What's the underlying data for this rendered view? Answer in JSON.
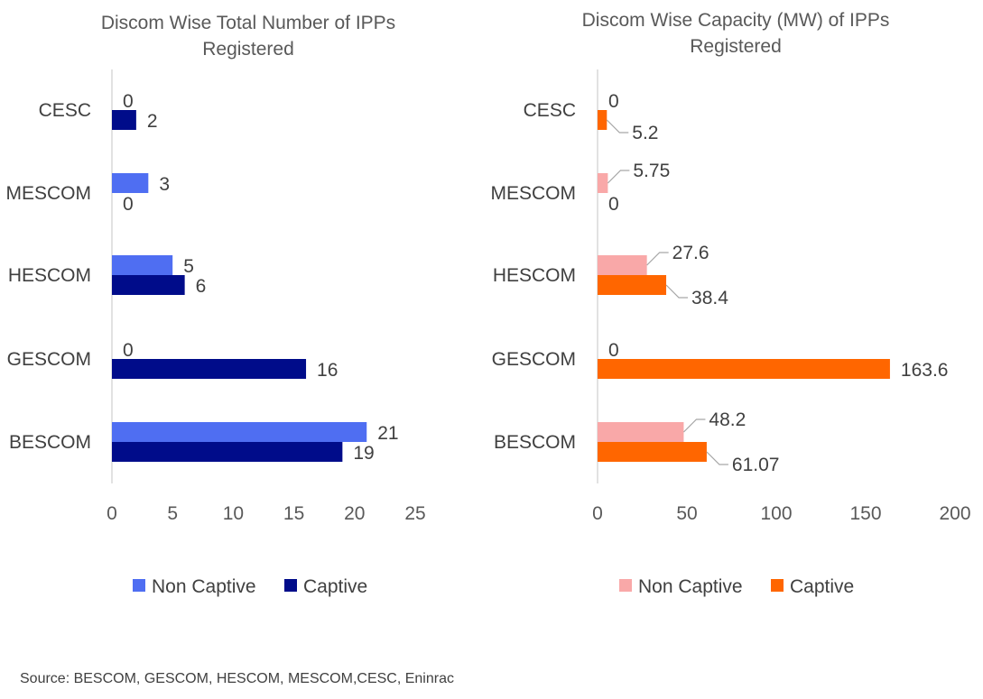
{
  "chart_data": [
    {
      "type": "bar",
      "orientation": "horizontal",
      "title_lines": [
        "Discom Wise Total Number of IPPs",
        "Registered"
      ],
      "categories": [
        "CESC",
        "MESCOM",
        "HESCOM",
        "GESCOM",
        "BESCOM"
      ],
      "series": [
        {
          "name": "Non Captive",
          "color": "#4F6EF2",
          "values": [
            0,
            3,
            5,
            0,
            21
          ],
          "labels": [
            "0",
            "3",
            "5",
            "0",
            "21"
          ]
        },
        {
          "name": "Captive",
          "color": "#000C8A",
          "values": [
            2,
            0,
            6,
            16,
            19
          ],
          "labels": [
            "2",
            "0",
            "6",
            "16",
            "19"
          ]
        }
      ],
      "xlim": [
        0,
        25
      ],
      "xticks": [
        0,
        5,
        10,
        15,
        20,
        25
      ],
      "xlabel": "",
      "ylabel": "",
      "grid": false,
      "legend": "bottom"
    },
    {
      "type": "bar",
      "orientation": "horizontal",
      "title_lines": [
        "Discom Wise Capacity (MW) of IPPs",
        "Registered"
      ],
      "categories": [
        "CESC",
        "MESCOM",
        "HESCOM",
        "GESCOM",
        "BESCOM"
      ],
      "series": [
        {
          "name": "Non Captive",
          "color": "#F9A8A8",
          "values": [
            0,
            5.75,
            27.6,
            0,
            48.2
          ],
          "labels": [
            "0",
            "5.75",
            "27.6",
            "0",
            "48.2"
          ]
        },
        {
          "name": "Captive",
          "color": "#FF6600",
          "values": [
            5.2,
            0,
            38.4,
            163.6,
            61.07
          ],
          "labels": [
            "5.2",
            "0",
            "38.4",
            "163.6",
            "61.07"
          ]
        }
      ],
      "xlim": [
        0,
        200
      ],
      "xticks": [
        0,
        50,
        100,
        150,
        200
      ],
      "xlabel": "",
      "ylabel": "",
      "grid": false,
      "legend": "bottom"
    }
  ],
  "source_text": "Source: BESCOM, GESCOM, HESCOM, MESCOM,CESC, Eninrac"
}
